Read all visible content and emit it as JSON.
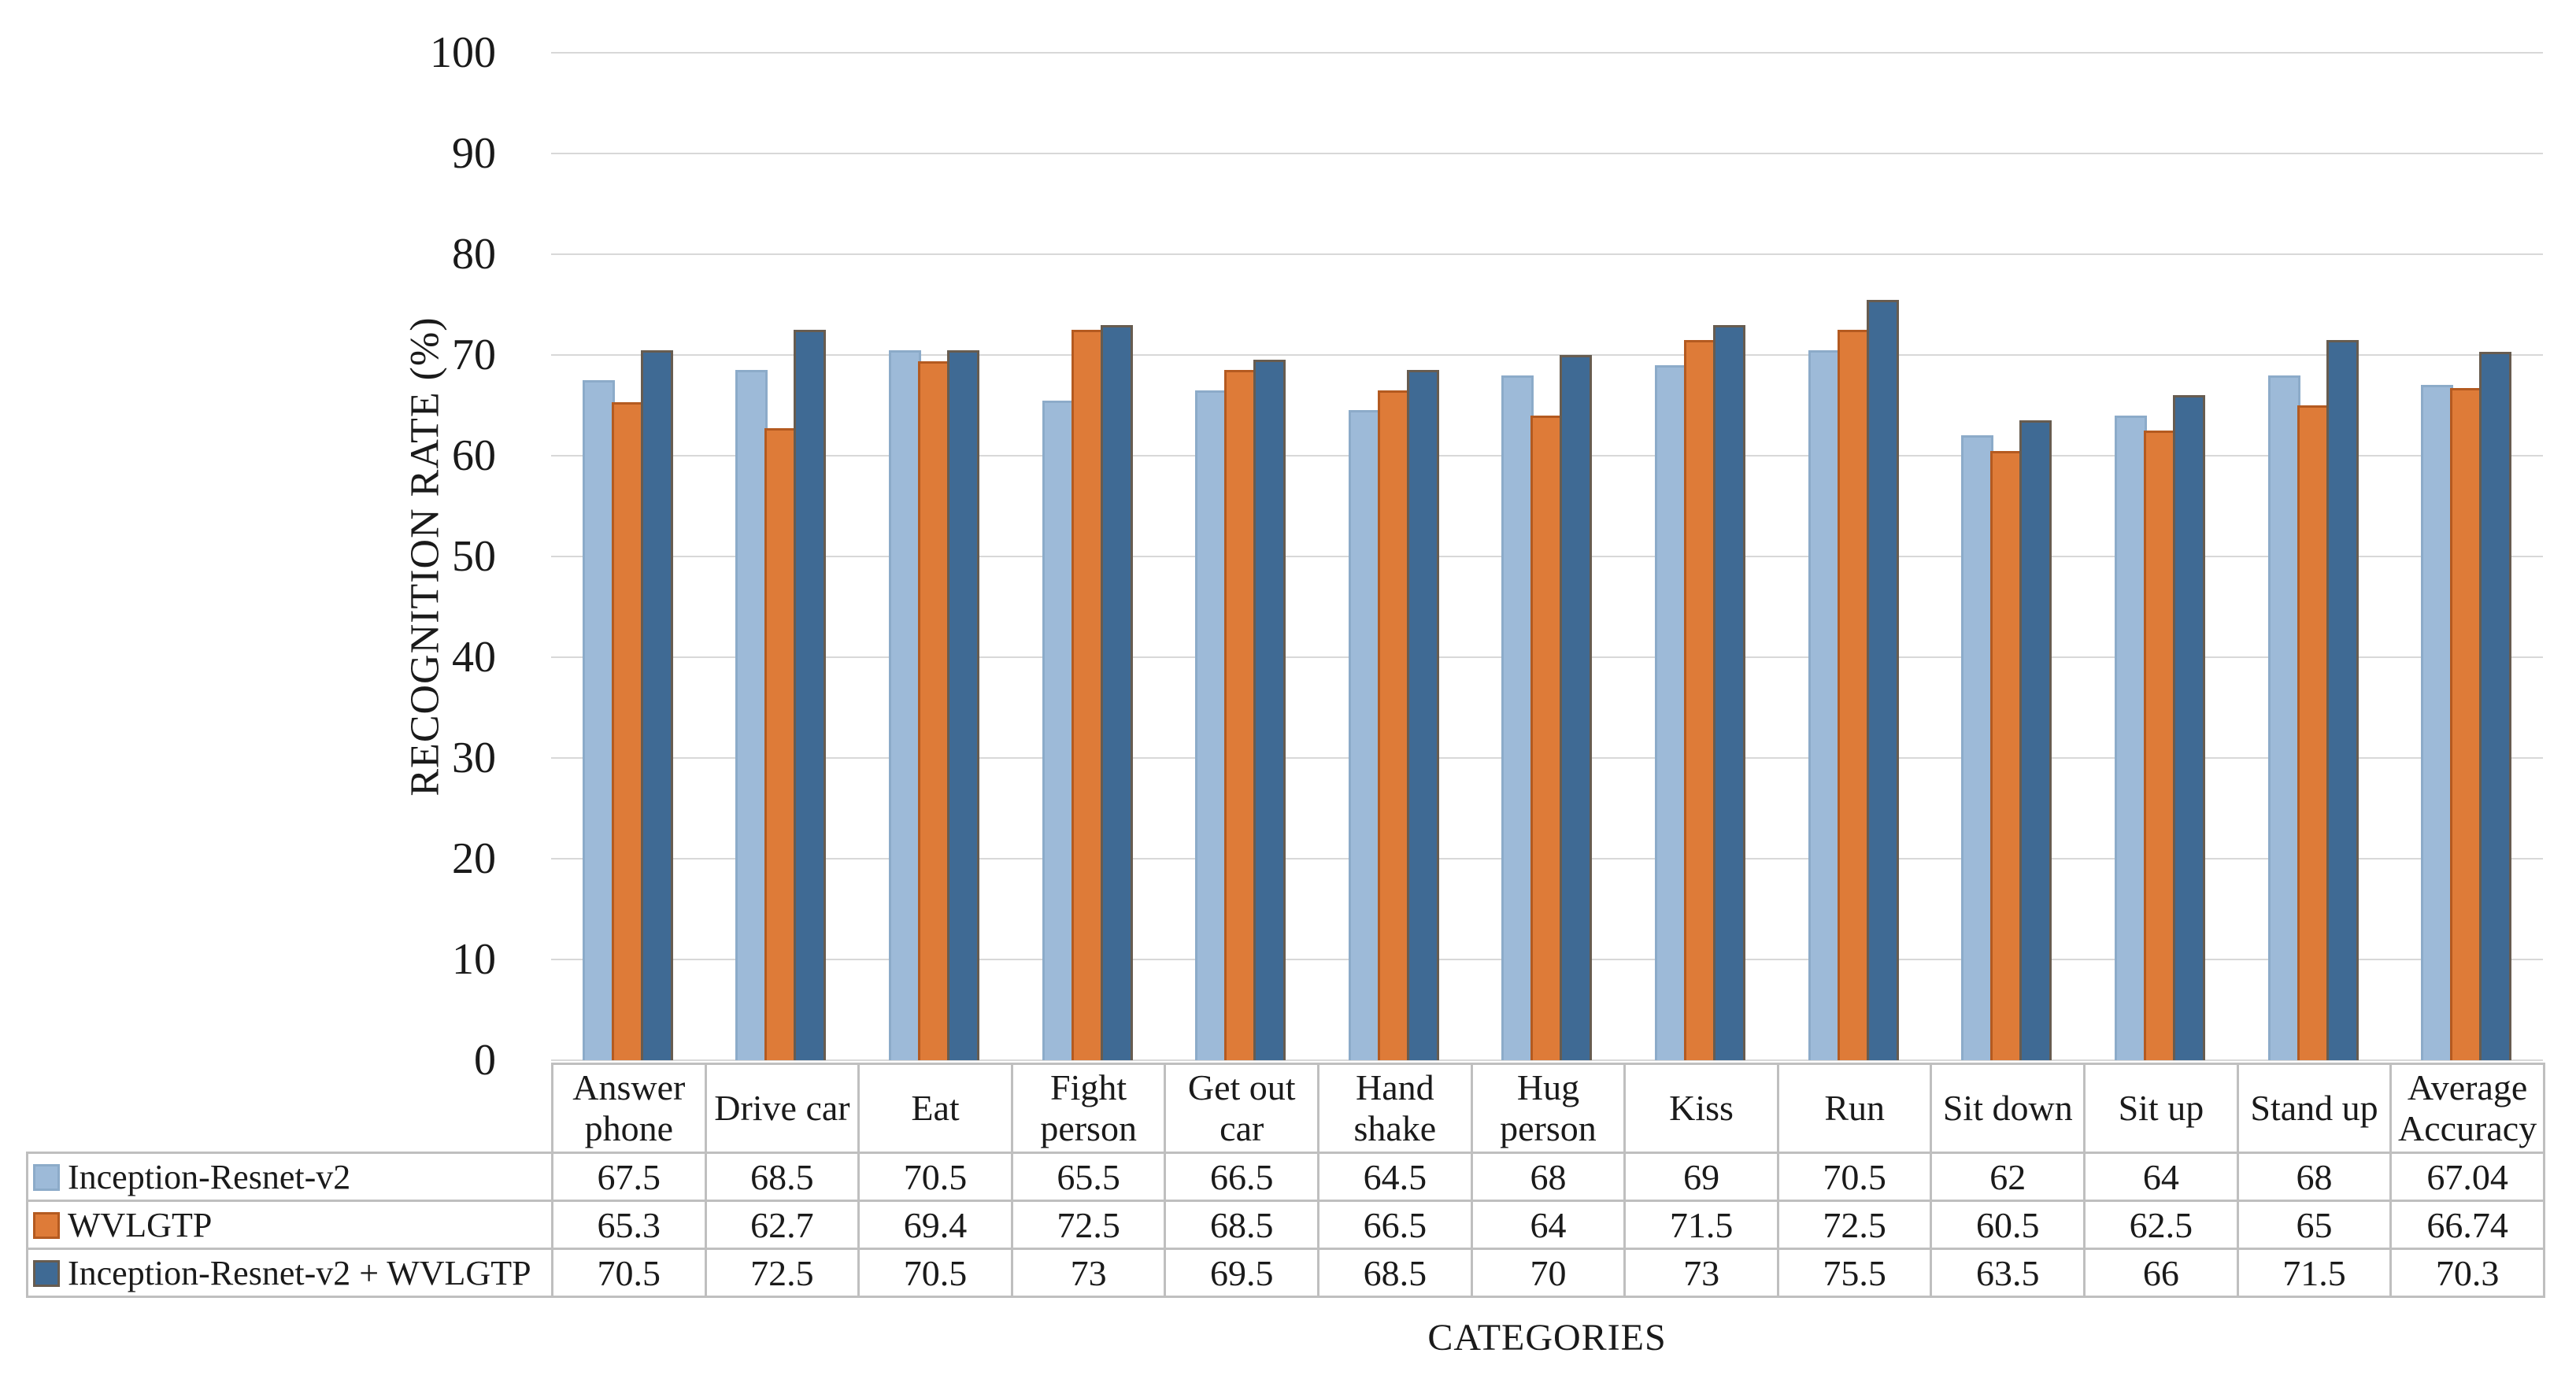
{
  "chart_data": {
    "type": "bar",
    "title": "",
    "xlabel": "CATEGORIES",
    "ylabel": "RECOGNITION RATE (%)",
    "ylim": [
      0,
      100
    ],
    "yticks": [
      0,
      10,
      20,
      30,
      40,
      50,
      60,
      70,
      80,
      90,
      100
    ],
    "grid": true,
    "legend_position": "table-left",
    "categories": [
      "Answer phone",
      "Drive car",
      "Eat",
      "Fight person",
      "Get out car",
      "Hand shake",
      "Hug person",
      "Kiss",
      "Run",
      "Sit down",
      "Sit up",
      "Stand up",
      "Average Accuracy"
    ],
    "series": [
      {
        "name": "Inception-Resnet-v2",
        "color": "#9dbad8",
        "border_color": "#8cabc9",
        "values": [
          67.5,
          68.5,
          70.5,
          65.5,
          66.5,
          64.5,
          68,
          69,
          70.5,
          62,
          64,
          68,
          67.04
        ]
      },
      {
        "name": "WVLGTP",
        "color": "#de7b38",
        "border_color": "#b45a20",
        "values": [
          65.3,
          62.7,
          69.4,
          72.5,
          68.5,
          66.5,
          64,
          71.5,
          72.5,
          60.5,
          62.5,
          65,
          66.74
        ]
      },
      {
        "name": "Inception-Resnet-v2 + WVLGTP",
        "color": "#3f6a94",
        "border_color": "#675c50",
        "values": [
          70.5,
          72.5,
          70.5,
          73,
          69.5,
          68.5,
          70,
          73,
          75.5,
          63.5,
          66,
          71.5,
          70.3
        ]
      }
    ]
  }
}
